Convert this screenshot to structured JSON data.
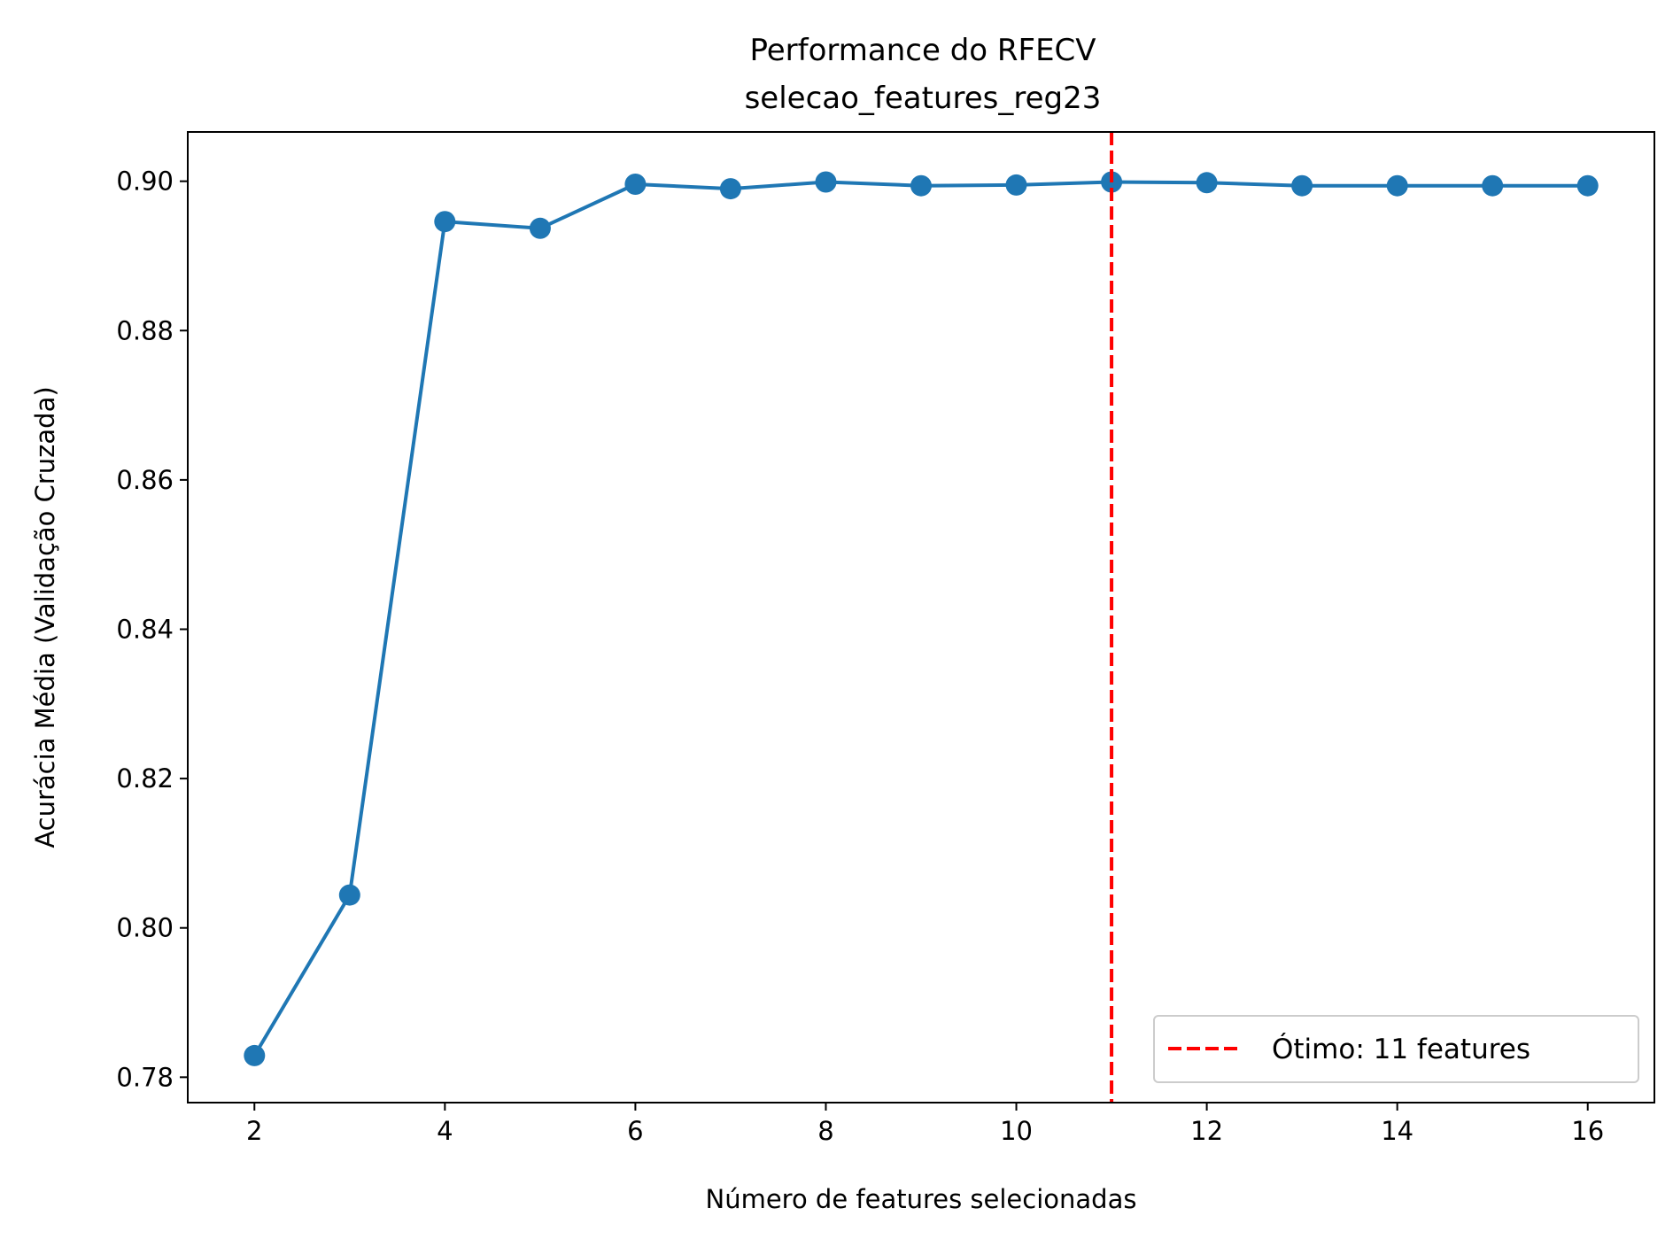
{
  "chart_data": {
    "type": "line",
    "title": "Performance do RFECV",
    "subtitle": "selecao_features_reg23",
    "xlabel": "Número de features selecionadas",
    "ylabel": "Acurácia Média (Validação Cruzada)",
    "xlim": [
      1.3,
      16.7
    ],
    "ylim": [
      0.7766,
      0.9066
    ],
    "x_ticks": [
      2,
      4,
      6,
      8,
      10,
      12,
      14,
      16
    ],
    "x_tick_labels": [
      "2",
      "4",
      "6",
      "8",
      "10",
      "12",
      "14",
      "16"
    ],
    "y_ticks": [
      0.78,
      0.8,
      0.82,
      0.84,
      0.86,
      0.88,
      0.9
    ],
    "y_tick_labels": [
      "0.78",
      "0.80",
      "0.82",
      "0.84",
      "0.86",
      "0.88",
      "0.90"
    ],
    "grid": false,
    "series": [
      {
        "color": "#1f77b4",
        "marker": "circle",
        "x": [
          2,
          3,
          4,
          5,
          6,
          7,
          8,
          9,
          10,
          11,
          12,
          13,
          14,
          15,
          16
        ],
        "y": [
          0.7829,
          0.8044,
          0.8946,
          0.8937,
          0.8996,
          0.899,
          0.8999,
          0.8994,
          0.8995,
          0.8999,
          0.8998,
          0.8994,
          0.8994,
          0.8994,
          0.8994
        ]
      }
    ],
    "reference_line": {
      "orientation": "vertical",
      "x": 11,
      "style": "dashed",
      "color": "#ff0000",
      "label": "Ótimo: 11 features"
    },
    "legend": {
      "position": "lower-right",
      "entries": [
        "Ótimo: 11 features"
      ]
    }
  }
}
